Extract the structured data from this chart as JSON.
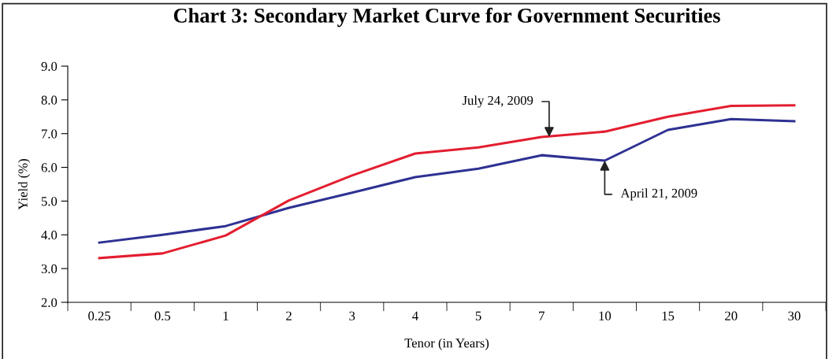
{
  "chart_data": {
    "type": "line",
    "title": "Chart 3: Secondary Market Curve for Government Securities",
    "xlabel": "Tenor (in Years)",
    "ylabel": "Yield (%)",
    "categories": [
      "0.25",
      "0.5",
      "1",
      "2",
      "3",
      "4",
      "5",
      "7",
      "10",
      "15",
      "20",
      "30"
    ],
    "series": [
      {
        "color": "#2e3192",
        "values": [
          3.77,
          4.0,
          4.26,
          4.8,
          5.25,
          5.71,
          5.96,
          6.36,
          6.2,
          7.11,
          7.43,
          7.37
        ]
      },
      {
        "color": "#e31e30",
        "values": [
          3.31,
          3.45,
          3.98,
          5.02,
          5.76,
          6.41,
          6.59,
          6.9,
          7.06,
          7.5,
          7.82,
          7.84
        ]
      }
    ],
    "annotations": [
      {
        "text": "July 24, 2009",
        "x": "7",
        "y": 6.9
      },
      {
        "text": "April 21, 2009",
        "x": "10",
        "y": 6.2
      }
    ],
    "ylim": [
      2.0,
      9.0
    ],
    "yticks": [
      {
        "value": 2,
        "label": "2.0"
      },
      {
        "value": 3,
        "label": "3.0"
      },
      {
        "value": 4,
        "label": "4.0"
      },
      {
        "value": 5,
        "label": "5.0"
      },
      {
        "value": 6,
        "label": "6.0"
      },
      {
        "value": 7,
        "label": "7.0"
      },
      {
        "value": 8,
        "label": "8.0"
      },
      {
        "value": 9,
        "label": "9.0"
      }
    ],
    "grid": false,
    "legend": false,
    "marker": "none",
    "line_style": "solid"
  }
}
